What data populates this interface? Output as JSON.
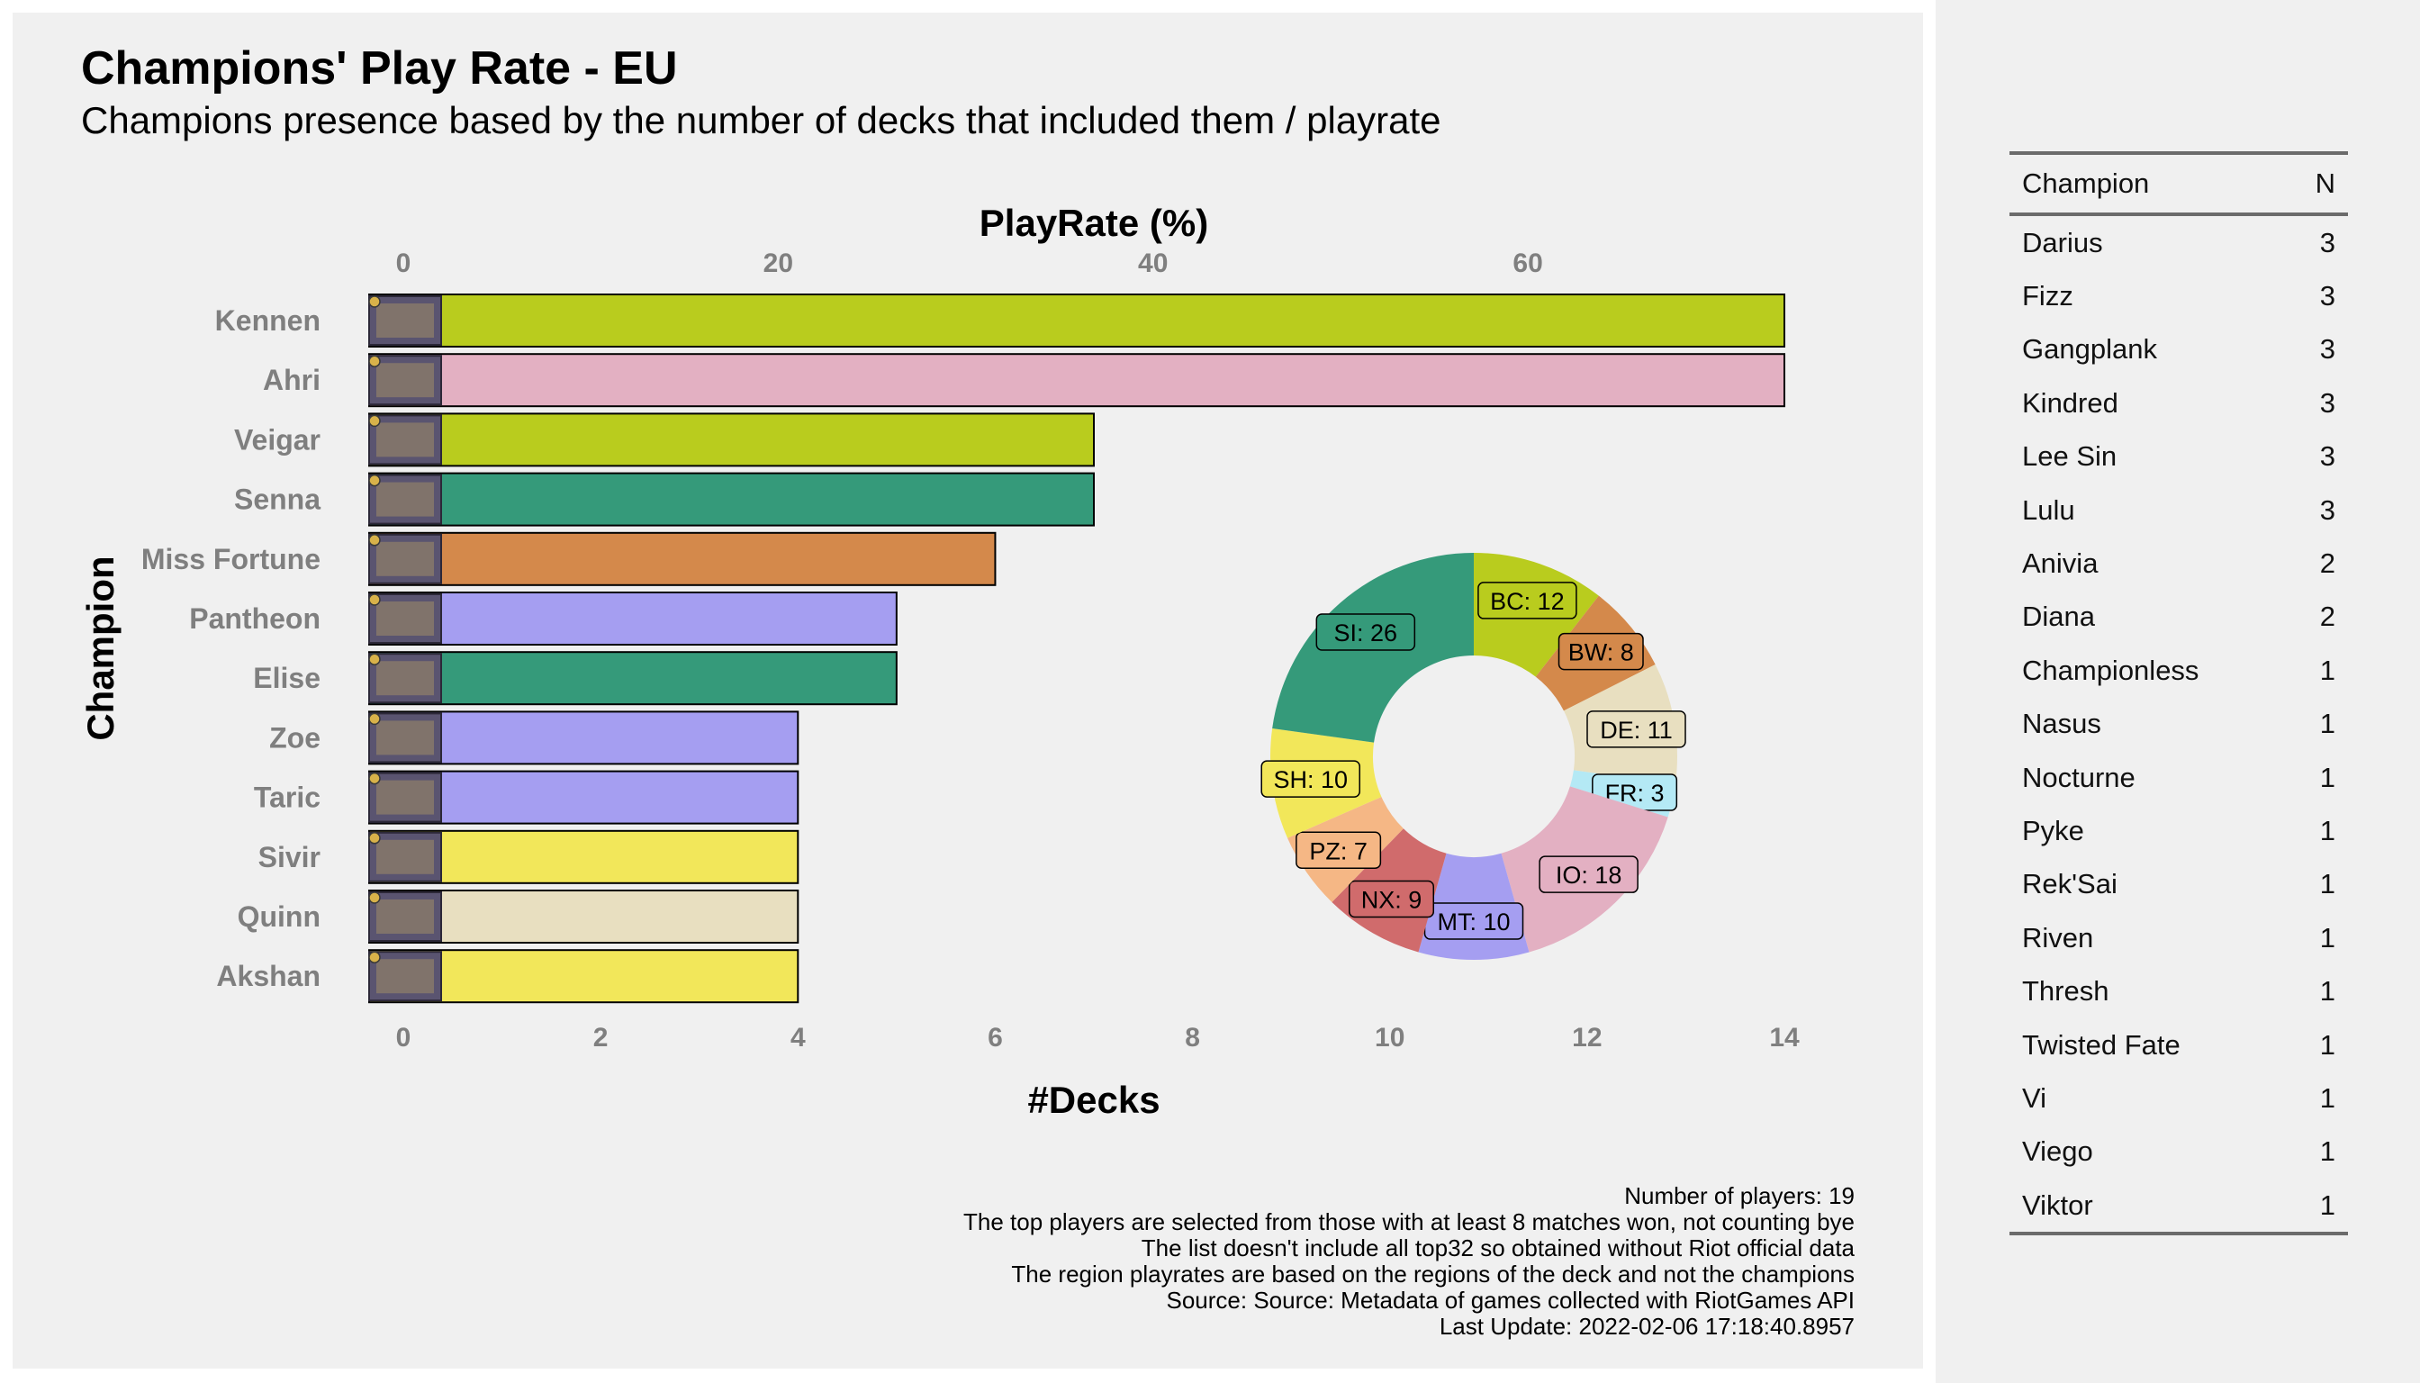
{
  "title": "Champions' Play Rate - EU",
  "subtitle": "Champions presence based by the number of decks that included them / playrate",
  "colors": {
    "BC": "#b9cc1e",
    "BW": "#d4894b",
    "DE": "#e8dfc0",
    "FR": "#b4e9f5",
    "IO": "#e3b0c2",
    "MT": "#a59ef1",
    "NX": "#d06b6c",
    "PZ": "#f5b785",
    "SH": "#f2e75a",
    "SI": "#359a7a"
  },
  "chart_data": [
    {
      "type": "bar",
      "orientation": "horizontal",
      "xlabel": "#Decks",
      "x2label": "PlayRate (%)",
      "ylabel": "Champion",
      "xlim": [
        0,
        14
      ],
      "xticks": [
        "0",
        "2",
        "4",
        "6",
        "8",
        "10",
        "12",
        "14"
      ],
      "x2ticks": [
        "0",
        "20",
        "40",
        "60"
      ],
      "grid": false,
      "categories": [
        "Kennen",
        "Ahri",
        "Veigar",
        "Senna",
        "Miss Fortune",
        "Pantheon",
        "Elise",
        "Zoe",
        "Taric",
        "Sivir",
        "Quinn",
        "Akshan"
      ],
      "values": [
        14,
        14,
        7,
        7,
        6,
        5,
        5,
        4,
        4,
        4,
        4,
        4
      ],
      "bar_regions": [
        "BC",
        "IO",
        "BC",
        "SI",
        "BW",
        "MT",
        "SI",
        "MT",
        "MT",
        "SH",
        "DE",
        "SH"
      ]
    },
    {
      "type": "pie",
      "style": "donut",
      "slices": [
        {
          "label": "BC: 12",
          "region": "BC",
          "value": 12
        },
        {
          "label": "BW: 8",
          "region": "BW",
          "value": 8
        },
        {
          "label": "DE: 11",
          "region": "DE",
          "value": 11
        },
        {
          "label": "FR: 3",
          "region": "FR",
          "value": 3
        },
        {
          "label": "IO: 18",
          "region": "IO",
          "value": 18
        },
        {
          "label": "MT: 10",
          "region": "MT",
          "value": 10
        },
        {
          "label": "NX: 9",
          "region": "NX",
          "value": 9
        },
        {
          "label": "PZ: 7",
          "region": "PZ",
          "value": 7
        },
        {
          "label": "SH: 10",
          "region": "SH",
          "value": 10
        },
        {
          "label": "SI: 26",
          "region": "SI",
          "value": 26
        }
      ]
    },
    {
      "type": "table",
      "columns": [
        "Champion",
        "N"
      ],
      "rows": [
        [
          "Darius",
          "3"
        ],
        [
          "Fizz",
          "3"
        ],
        [
          "Gangplank",
          "3"
        ],
        [
          "Kindred",
          "3"
        ],
        [
          "Lee Sin",
          "3"
        ],
        [
          "Lulu",
          "3"
        ],
        [
          "Anivia",
          "2"
        ],
        [
          "Diana",
          "2"
        ],
        [
          "Championless",
          "1"
        ],
        [
          "Nasus",
          "1"
        ],
        [
          "Nocturne",
          "1"
        ],
        [
          "Pyke",
          "1"
        ],
        [
          "Rek'Sai",
          "1"
        ],
        [
          "Riven",
          "1"
        ],
        [
          "Thresh",
          "1"
        ],
        [
          "Twisted Fate",
          "1"
        ],
        [
          "Vi",
          "1"
        ],
        [
          "Viego",
          "1"
        ],
        [
          "Viktor",
          "1"
        ]
      ]
    }
  ],
  "caption": [
    "Number of players: 19",
    "The top players are selected from those with at least 8 matches won, not counting bye",
    "The list doesn't include all top32 so obtained without Riot official data",
    "The region playrates are based on the regions of the deck and not the champions",
    "Source: Source: Metadata of games collected with RiotGames API",
    "Last Update: 2022-02-06 17:18:40.8957"
  ]
}
